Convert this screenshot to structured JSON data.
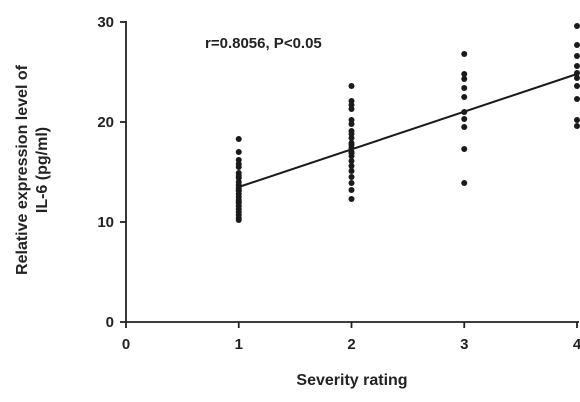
{
  "chart_data": {
    "type": "scatter",
    "title": "",
    "xlabel": "Severity rating",
    "ylabel_lines": [
      "Relative expression level of",
      "IL-6 (pg/ml)"
    ],
    "annotation": "r=0.8056, P<0.05",
    "xlim": [
      0,
      4
    ],
    "ylim": [
      0,
      30
    ],
    "x_ticks": [
      0,
      1,
      2,
      3,
      4
    ],
    "y_ticks": [
      0,
      10,
      20,
      30
    ],
    "grid": false,
    "point_color": "#1a1a1a",
    "line_color": "#1a1a1a",
    "series": [
      {
        "x": [
          1,
          1,
          1,
          1,
          1,
          1,
          1,
          1,
          1,
          1,
          1,
          1,
          1,
          1,
          1,
          1,
          1,
          1,
          1,
          1,
          1,
          1,
          1,
          1,
          2,
          2,
          2,
          2,
          2,
          2,
          2,
          2,
          2,
          2,
          2,
          2,
          2,
          2,
          2,
          2,
          2,
          2,
          2,
          2,
          2,
          2,
          3,
          3,
          3,
          3,
          3,
          3,
          3,
          3,
          3,
          3,
          4,
          4,
          4,
          4,
          4,
          4,
          4,
          4,
          4,
          4
        ],
        "y": [
          18.3,
          17.0,
          16.2,
          15.5,
          14.9,
          14.4,
          14.0,
          13.7,
          13.4,
          13.1,
          12.8,
          12.5,
          12.2,
          11.9,
          11.6,
          11.3,
          11.0,
          10.7,
          10.4,
          10.2,
          13.2,
          12.0,
          15.8,
          14.6,
          23.6,
          22.1,
          21.3,
          20.2,
          19.8,
          19.1,
          18.4,
          17.9,
          17.4,
          17.0,
          16.6,
          16.1,
          15.6,
          15.1,
          14.5,
          13.9,
          13.2,
          12.3,
          18.8,
          16.9,
          17.7,
          21.7,
          26.8,
          24.8,
          24.3,
          23.4,
          22.5,
          20.3,
          19.5,
          17.3,
          13.9,
          21.0,
          29.6,
          27.7,
          26.6,
          25.6,
          24.4,
          23.6,
          22.3,
          20.2,
          19.6,
          24.9
        ]
      }
    ],
    "fit_line": {
      "x": [
        1,
        4
      ],
      "y": [
        13.5,
        24.8
      ]
    }
  }
}
